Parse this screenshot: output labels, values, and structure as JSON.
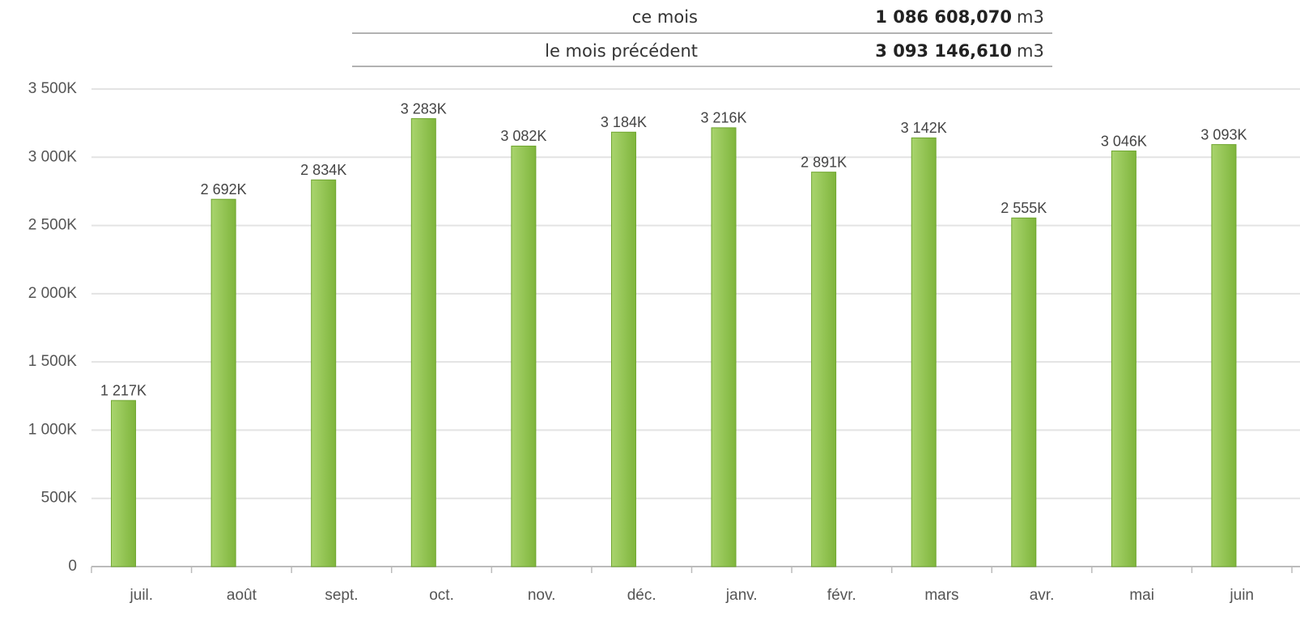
{
  "summary": [
    {
      "label": "ce mois",
      "value": "1 086 608,070",
      "unit": "m3"
    },
    {
      "label": "le mois précédent",
      "value": "3 093 146,610",
      "unit": "m3"
    }
  ],
  "chart_data": {
    "type": "bar",
    "categories": [
      "juil.",
      "août",
      "sept.",
      "oct.",
      "nov.",
      "déc.",
      "janv.",
      "févr.",
      "mars",
      "avr.",
      "mai",
      "juin"
    ],
    "values": [
      1217,
      2692,
      2834,
      3283,
      3082,
      3184,
      3216,
      2891,
      3142,
      2555,
      3046,
      3093
    ],
    "value_labels": [
      "1 217K",
      "2 692K",
      "2 834K",
      "3 283K",
      "3 082K",
      "3 184K",
      "3 216K",
      "2 891K",
      "3 142K",
      "2 555K",
      "3 046K",
      "3 093K"
    ],
    "color": "#8cc04b",
    "ylim": [
      0,
      3500
    ],
    "yticks": [
      0,
      {
        "value": 500,
        "label": "500K"
      },
      {
        "value": 1000,
        "label": "1 000K"
      },
      {
        "value": 1500,
        "label": "1 500K"
      },
      {
        "value": 2000,
        "label": "2 000K"
      },
      {
        "value": 2500,
        "label": "2 500K"
      },
      {
        "value": 3000,
        "label": "3 000K"
      },
      {
        "value": 3500,
        "label": "3 500K"
      }
    ],
    "grid": true
  }
}
